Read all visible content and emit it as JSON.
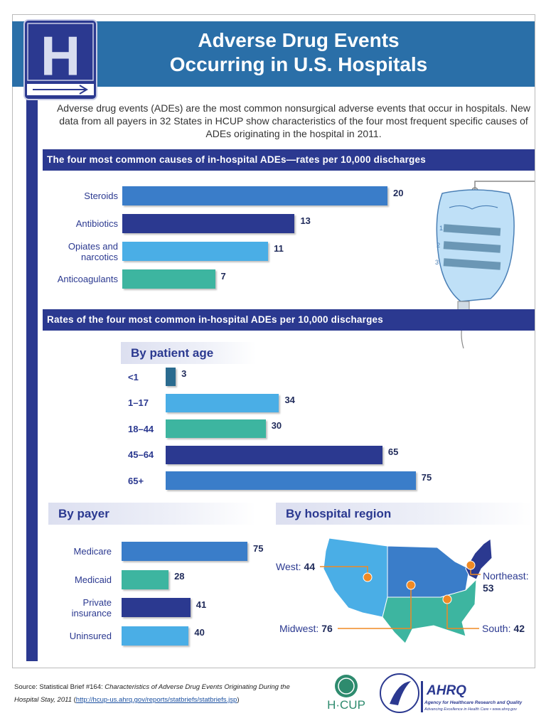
{
  "header": {
    "logo": "H",
    "title_line1": "Adverse Drug Events",
    "title_line2": "Occurring in U.S. Hospitals"
  },
  "intro": "Adverse drug events (ADEs) are the most common nonsurgical adverse events that occur in hospitals. New data from all payers in 32 States in HCUP show characteristics of the four most frequent specific causes of ADEs originating in the hospital in 2011.",
  "iv_bag_marks": [
    "1",
    "2",
    "3"
  ],
  "chart_data": [
    {
      "type": "bar",
      "title": "The four most common causes of in-hospital ADEs—rates per 10,000 discharges",
      "categories": [
        "Steroids",
        "Antibiotics",
        "Opiates and narcotics",
        "Anticoagulants"
      ],
      "values": [
        20,
        13,
        11,
        7
      ],
      "colors": [
        "#3a7dc9",
        "#2b3990",
        "#4aaee6",
        "#3db5a0"
      ]
    },
    {
      "type": "bar",
      "title": "Rates of the four most common in-hospital ADEs per 10,000 discharges",
      "subtitle": "By patient age",
      "categories": [
        "<1",
        "1–17",
        "18–44",
        "45–64",
        "65+"
      ],
      "values": [
        3,
        34,
        30,
        65,
        75
      ],
      "colors": [
        "#2a6b8f",
        "#4aaee6",
        "#3db5a0",
        "#2b3990",
        "#3a7dc9"
      ]
    },
    {
      "type": "bar",
      "title": "By payer",
      "categories": [
        "Medicare",
        "Medicaid",
        "Private insurance",
        "Uninsured"
      ],
      "values": [
        75,
        28,
        41,
        40
      ],
      "colors": [
        "#3a7dc9",
        "#3db5a0",
        "#2b3990",
        "#4aaee6"
      ]
    },
    {
      "type": "map",
      "title": "By hospital region",
      "categories": [
        "West:",
        "Midwest:",
        "South:",
        "Northeast:"
      ],
      "values": [
        44,
        76,
        42,
        53
      ],
      "colors": [
        "#4aaee6",
        "#3a7dc9",
        "#3db5a0",
        "#2b3990"
      ]
    }
  ],
  "footer": {
    "source_prefix": "Source: Statistical Brief #164: ",
    "source_title": "Characteristics of Adverse Drug Events Originating During the Hospital Stay, 2011",
    "link_open": " (",
    "link": "http://hcup-us.ahrq.gov/reports/statbriefs/statbriefs.jsp",
    "link_close": ")",
    "hcup": "H·CUP",
    "ahrq": "AHRQ",
    "ahrq_name": "Agency for Healthcare Research and Quality",
    "ahrq_tagline": "Advancing Excellence in Health Care • www.ahrq.gov"
  }
}
